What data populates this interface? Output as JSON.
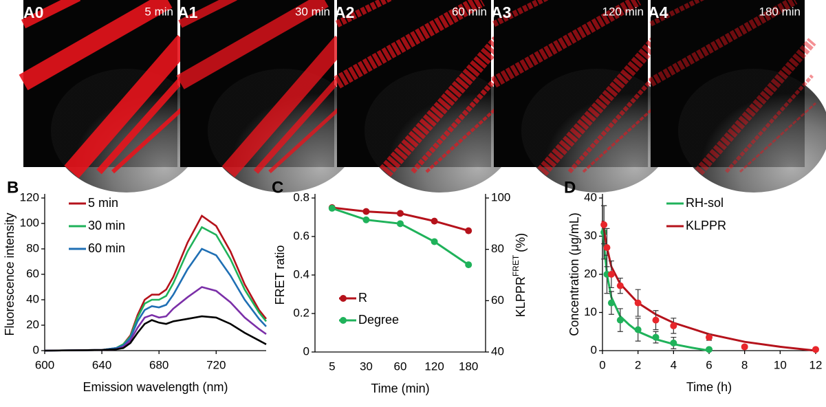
{
  "image_panels": [
    {
      "label": "A0",
      "time": "5 min"
    },
    {
      "label": "A1",
      "time": "30 min"
    },
    {
      "label": "A2",
      "time": "60 min"
    },
    {
      "label": "A3",
      "time": "120 min"
    },
    {
      "label": "A4",
      "time": "180 min"
    }
  ],
  "chart_data": [
    {
      "type": "line",
      "panel": "B",
      "y_label": "Fluorescence intensity",
      "x_label": "Emission wavelength  (nm)",
      "x": [
        600,
        640,
        650,
        655,
        660,
        665,
        670,
        675,
        680,
        685,
        690,
        700,
        710,
        720,
        730,
        740,
        750,
        755
      ],
      "xlim": [
        600,
        755
      ],
      "xticks": [
        600,
        640,
        680,
        720
      ],
      "ylim": [
        0,
        120
      ],
      "yticks": [
        0,
        20,
        40,
        60,
        80,
        100,
        120
      ],
      "legend": "upper left",
      "series": [
        {
          "name": "5 min",
          "color": "#b5121b",
          "values": [
            0,
            0.5,
            2,
            5,
            12,
            28,
            40,
            44,
            44,
            48,
            58,
            85,
            106,
            98,
            78,
            52,
            32,
            25
          ]
        },
        {
          "name": "30 min",
          "color": "#1fb25a",
          "values": [
            0,
            0.5,
            2,
            5,
            11,
            26,
            37,
            40,
            40,
            43,
            53,
            78,
            97,
            91,
            72,
            48,
            30,
            23
          ]
        },
        {
          "name": "60 min",
          "color": "#1f6fb4",
          "values": [
            0,
            0.5,
            2,
            4,
            10,
            23,
            32,
            35,
            34,
            36,
            44,
            64,
            80,
            75,
            59,
            40,
            25,
            19
          ]
        },
        {
          "color": "#7b2fa8",
          "values": [
            0,
            0.5,
            1,
            3,
            8,
            18,
            26,
            28,
            26,
            27,
            33,
            42,
            50,
            47,
            38,
            26,
            17,
            13
          ]
        },
        {
          "color": "#000000",
          "values": [
            0,
            0.5,
            1,
            2,
            6,
            14,
            21,
            24,
            22,
            21,
            23,
            25,
            27,
            26,
            21,
            14,
            8,
            5
          ]
        }
      ]
    },
    {
      "type": "line",
      "panel": "C",
      "y_label": "FRET ratio",
      "y2_label": "KLPPR",
      "y2_label_sup": "FRET",
      "y2_label_unit": "(%)",
      "x_label": "Time (min)",
      "categories": [
        "5",
        "30",
        "60",
        "120",
        "180"
      ],
      "markers": true,
      "ylim": [
        0,
        0.8
      ],
      "yticks": [
        0,
        0.2,
        0.4,
        0.6,
        0.8
      ],
      "y2lim": [
        40,
        100
      ],
      "y2ticks": [
        40,
        60,
        80,
        100
      ],
      "legend": "lower left",
      "series": [
        {
          "name": "R",
          "color": "#b5121b",
          "values": [
            0.75,
            0.73,
            0.72,
            0.68,
            0.63
          ]
        },
        {
          "name": "Degree",
          "color": "#1fb25a",
          "axis": "y2",
          "values": [
            96,
            91.5,
            90,
            83,
            74
          ]
        }
      ]
    },
    {
      "type": "scatter",
      "panel": "D",
      "y_label": "Concentration (μg/mL)",
      "x_label": "Time (h)",
      "xlim": [
        0,
        12
      ],
      "xticks": [
        0,
        2,
        4,
        6,
        8,
        10,
        12
      ],
      "ylim": [
        0,
        40
      ],
      "yticks": [
        0,
        10,
        20,
        30,
        40
      ],
      "legend": "upper right",
      "series": [
        {
          "name": "RH-sol",
          "color": "#1fb25a",
          "x": [
            0.083,
            0.25,
            0.5,
            1,
            2,
            3,
            4,
            6
          ],
          "values": [
            31,
            20,
            12.5,
            8,
            5.5,
            3.5,
            2,
            0.3
          ],
          "errors": [
            7,
            5,
            3,
            3,
            3,
            1.5,
            1.5,
            0.3
          ],
          "fit_x": [
            0,
            0.25,
            0.5,
            1,
            1.5,
            2,
            3,
            4,
            5,
            6
          ],
          "fit_values": [
            32,
            20,
            14,
            9,
            6.8,
            5,
            3,
            1.7,
            0.8,
            0
          ]
        },
        {
          "name": "KLPPR",
          "color": "#e8262b",
          "line_color": "#b5121b",
          "x": [
            0.083,
            0.25,
            0.5,
            1,
            2,
            3,
            4,
            6,
            8,
            12
          ],
          "values": [
            33,
            27,
            20,
            17,
            12.5,
            8,
            6.5,
            3.5,
            1,
            0.3
          ],
          "errors": [
            5,
            5,
            3.5,
            2,
            3.5,
            2.5,
            2,
            0.8,
            0.5,
            0.3
          ],
          "fit_x": [
            0,
            0.25,
            0.5,
            1,
            2,
            3,
            4,
            6,
            8,
            10,
            12
          ],
          "fit_values": [
            34,
            27,
            22,
            17.5,
            12.5,
            9.5,
            7.3,
            4.3,
            2.3,
            1,
            0
          ]
        }
      ]
    }
  ]
}
